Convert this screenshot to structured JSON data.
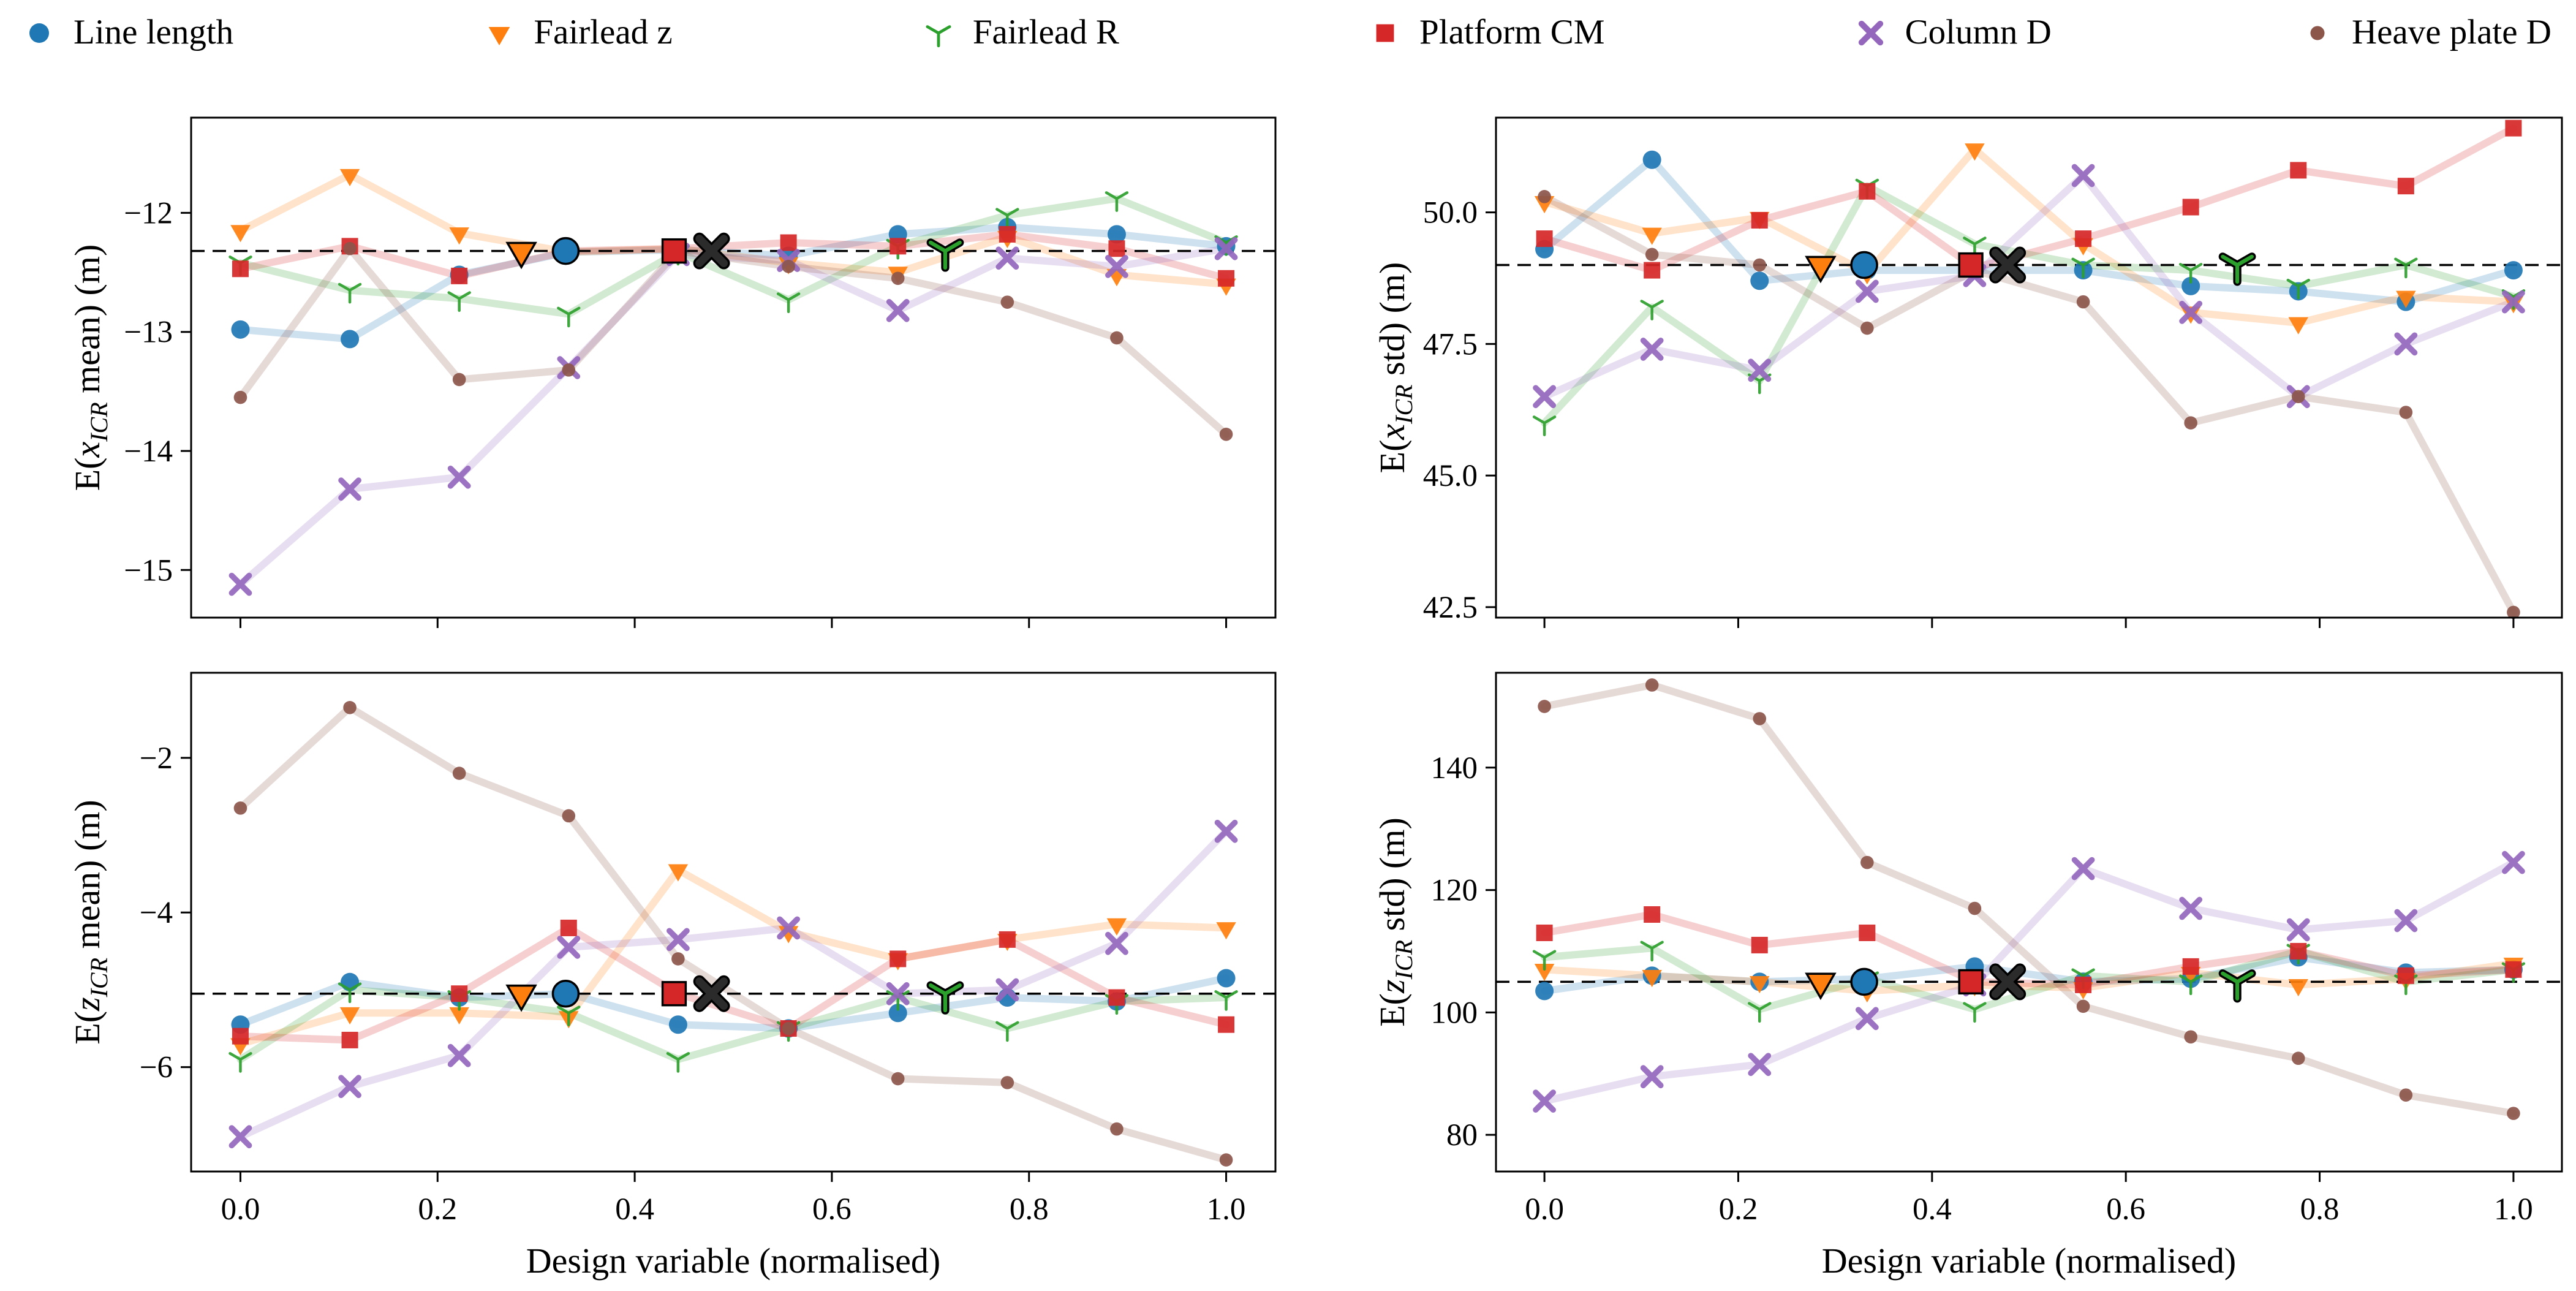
{
  "figure_title": "",
  "chart_data": {
    "type": "scatter",
    "layout": "2x2-grid",
    "grid": false,
    "legend_position": "top",
    "xlabel": "Design variable (normalised)",
    "xlim": [
      -0.05,
      1.05
    ],
    "x": [
      0.0,
      0.111,
      0.222,
      0.333,
      0.444,
      0.556,
      0.667,
      0.778,
      0.889,
      1.0
    ],
    "xticks": [
      {
        "v": 0.0,
        "label": "0.0"
      },
      {
        "v": 0.2,
        "label": "0.2"
      },
      {
        "v": 0.4,
        "label": "0.4"
      },
      {
        "v": 0.6,
        "label": "0.6"
      },
      {
        "v": 0.8,
        "label": "0.8"
      },
      {
        "v": 1.0,
        "label": "1.0"
      }
    ],
    "legend": [
      {
        "label": "Line length",
        "marker": "circle",
        "color": "#1f77b4"
      },
      {
        "label": "Fairlead z",
        "marker": "triangle-down",
        "color": "#ff7f0e"
      },
      {
        "label": "Fairlead R",
        "marker": "tri",
        "color": "#2ca02c"
      },
      {
        "label": "Platform CM",
        "marker": "square",
        "color": "#d62728"
      },
      {
        "label": "Column D",
        "marker": "x",
        "color": "#9467bd"
      },
      {
        "label": "Heave plate D",
        "marker": "dot",
        "color": "#8c564b"
      }
    ],
    "baseline_markers": [
      {
        "marker": "triangle-down",
        "color": "#ff7f0e",
        "x": 0.285
      },
      {
        "marker": "circle",
        "color": "#1f77b4",
        "x": 0.33
      },
      {
        "marker": "square",
        "color": "#d62728",
        "x": 0.44
      },
      {
        "marker": "x",
        "color": "#2b2b2b",
        "x": 0.478
      },
      {
        "marker": "tri",
        "color": "#2ca02c",
        "x": 0.715
      }
    ],
    "subplots": [
      {
        "name": "x-icr-mean",
        "ylabel": "E(x_ICR mean) (m)",
        "ylabel_parts": {
          "pre": "E(",
          "var": "x",
          "sub": "ICR",
          "post": " mean) (m)"
        },
        "ylim": [
          -15.4,
          -11.2
        ],
        "yticks": [
          {
            "v": -12,
            "label": "−12"
          },
          {
            "v": -13,
            "label": "−13"
          },
          {
            "v": -14,
            "label": "−14"
          },
          {
            "v": -15,
            "label": "−15"
          }
        ],
        "baseline": -12.32,
        "show_xtick_labels": false,
        "series": [
          {
            "name": "Line length",
            "marker": "circle",
            "color": "#1f77b4",
            "values": [
              -12.98,
              -13.06,
              -12.52,
              -12.33,
              -12.31,
              -12.36,
              -12.18,
              -12.12,
              -12.18,
              -12.28
            ]
          },
          {
            "name": "Fairlead z",
            "marker": "triangle-down",
            "color": "#ff7f0e",
            "values": [
              -12.15,
              -11.68,
              -12.17,
              -12.33,
              -12.3,
              -12.42,
              -12.5,
              -12.2,
              -12.52,
              -12.6
            ]
          },
          {
            "name": "Fairlead R",
            "marker": "tri",
            "color": "#2ca02c",
            "values": [
              -12.42,
              -12.65,
              -12.72,
              -12.85,
              -12.33,
              -12.73,
              -12.28,
              -12.02,
              -11.88,
              -12.25
            ]
          },
          {
            "name": "Platform CM",
            "marker": "square",
            "color": "#d62728",
            "values": [
              -12.47,
              -12.28,
              -12.53,
              -12.32,
              -12.3,
              -12.25,
              -12.28,
              -12.18,
              -12.3,
              -12.55
            ]
          },
          {
            "name": "Column D",
            "marker": "x",
            "color": "#9467bd",
            "values": [
              -15.12,
              -14.32,
              -14.22,
              -13.3,
              -12.35,
              -12.4,
              -12.82,
              -12.38,
              -12.45,
              -12.3
            ]
          },
          {
            "name": "Heave plate D",
            "marker": "dot",
            "color": "#8c564b",
            "values": [
              -13.55,
              -12.3,
              -13.4,
              -13.32,
              -12.32,
              -12.45,
              -12.55,
              -12.75,
              -13.05,
              -13.86
            ]
          }
        ]
      },
      {
        "name": "x-icr-std",
        "ylabel": "E(x_ICR std) (m)",
        "ylabel_parts": {
          "pre": "E(",
          "var": "x",
          "sub": "ICR",
          "post": " std) (m)"
        },
        "ylim": [
          42.3,
          51.8
        ],
        "yticks": [
          {
            "v": 50.0,
            "label": "50.0"
          },
          {
            "v": 47.5,
            "label": "47.5"
          },
          {
            "v": 45.0,
            "label": "45.0"
          },
          {
            "v": 42.5,
            "label": "42.5"
          }
        ],
        "baseline": 49.0,
        "show_xtick_labels": false,
        "series": [
          {
            "name": "Line length",
            "marker": "circle",
            "color": "#1f77b4",
            "values": [
              49.3,
              51.0,
              48.7,
              48.9,
              48.9,
              48.9,
              48.6,
              48.5,
              48.3,
              48.9
            ]
          },
          {
            "name": "Fairlead z",
            "marker": "triangle-down",
            "color": "#ff7f0e",
            "values": [
              50.2,
              49.6,
              49.9,
              48.85,
              51.2,
              49.4,
              48.1,
              47.9,
              48.4,
              48.3
            ]
          },
          {
            "name": "Fairlead R",
            "marker": "tri",
            "color": "#2ca02c",
            "values": [
              46.0,
              48.2,
              46.8,
              50.5,
              49.4,
              49.0,
              48.9,
              48.6,
              49.0,
              48.4
            ]
          },
          {
            "name": "Platform CM",
            "marker": "square",
            "color": "#d62728",
            "values": [
              49.5,
              48.9,
              49.85,
              50.4,
              48.95,
              49.5,
              50.1,
              50.8,
              50.5,
              51.6
            ]
          },
          {
            "name": "Column D",
            "marker": "x",
            "color": "#9467bd",
            "values": [
              46.5,
              47.4,
              47.0,
              48.5,
              48.8,
              50.7,
              48.1,
              46.5,
              47.5,
              48.3
            ]
          },
          {
            "name": "Heave plate D",
            "marker": "dot",
            "color": "#8c564b",
            "values": [
              50.3,
              49.2,
              49.0,
              47.8,
              48.9,
              48.3,
              46.0,
              46.5,
              46.2,
              42.4
            ]
          }
        ]
      },
      {
        "name": "z-icr-mean",
        "ylabel": "E(z_ICR mean) (m)",
        "ylabel_parts": {
          "pre": "E(",
          "var": "z",
          "sub": "ICR",
          "post": " mean) (m)"
        },
        "ylim": [
          -7.35,
          -0.9
        ],
        "yticks": [
          {
            "v": -2,
            "label": "−2"
          },
          {
            "v": -4,
            "label": "−4"
          },
          {
            "v": -6,
            "label": "−6"
          }
        ],
        "baseline": -5.05,
        "show_xtick_labels": true,
        "series": [
          {
            "name": "Line length",
            "marker": "circle",
            "color": "#1f77b4",
            "values": [
              -5.45,
              -4.9,
              -5.1,
              -5.05,
              -5.45,
              -5.5,
              -5.3,
              -5.1,
              -5.15,
              -4.85
            ]
          },
          {
            "name": "Fairlead z",
            "marker": "triangle-down",
            "color": "#ff7f0e",
            "values": [
              -5.7,
              -5.3,
              -5.3,
              -5.35,
              -3.45,
              -4.25,
              -4.6,
              -4.35,
              -4.15,
              -4.2
            ]
          },
          {
            "name": "Fairlead R",
            "marker": "tri",
            "color": "#2ca02c",
            "values": [
              -5.9,
              -5.0,
              -5.1,
              -5.3,
              -5.9,
              -5.5,
              -5.1,
              -5.5,
              -5.15,
              -5.1
            ]
          },
          {
            "name": "Platform CM",
            "marker": "square",
            "color": "#d62728",
            "values": [
              -5.6,
              -5.65,
              -5.05,
              -4.2,
              -5.05,
              -5.5,
              -4.6,
              -4.35,
              -5.1,
              -5.45
            ]
          },
          {
            "name": "Column D",
            "marker": "x",
            "color": "#9467bd",
            "values": [
              -6.9,
              -6.25,
              -5.85,
              -4.45,
              -4.35,
              -4.2,
              -5.05,
              -5.0,
              -4.4,
              -2.95
            ]
          },
          {
            "name": "Heave plate D",
            "marker": "dot",
            "color": "#8c564b",
            "values": [
              -2.65,
              -1.35,
              -2.2,
              -2.75,
              -4.6,
              -5.5,
              -6.15,
              -6.2,
              -6.8,
              -7.2
            ]
          }
        ]
      },
      {
        "name": "z-icr-std",
        "ylabel": "E(z_ICR std) (m)",
        "ylabel_parts": {
          "pre": "E(",
          "var": "z",
          "sub": "ICR",
          "post": " std) (m)"
        },
        "ylim": [
          74.0,
          155.5
        ],
        "yticks": [
          {
            "v": 140,
            "label": "140"
          },
          {
            "v": 120,
            "label": "120"
          },
          {
            "v": 100,
            "label": "100"
          },
          {
            "v": 80,
            "label": "80"
          }
        ],
        "baseline": 105.0,
        "show_xtick_labels": true,
        "series": [
          {
            "name": "Line length",
            "marker": "circle",
            "color": "#1f77b4",
            "values": [
              103.5,
              106,
              105,
              105.5,
              107.5,
              105,
              105.5,
              109,
              106.5,
              107
            ]
          },
          {
            "name": "Fairlead z",
            "marker": "triangle-down",
            "color": "#ff7f0e",
            "values": [
              107,
              106,
              105,
              103.5,
              104.5,
              104,
              106.5,
              104.5,
              105.5,
              108
            ]
          },
          {
            "name": "Fairlead R",
            "marker": "tri",
            "color": "#2ca02c",
            "values": [
              109,
              110.5,
              100.5,
              105.5,
              100.5,
              106,
              105,
              110,
              105,
              107
            ]
          },
          {
            "name": "Platform CM",
            "marker": "square",
            "color": "#d62728",
            "values": [
              113,
              116,
              111,
              113,
              105,
              104.5,
              107.5,
              110,
              106,
              107
            ]
          },
          {
            "name": "Column D",
            "marker": "x",
            "color": "#9467bd",
            "values": [
              85.5,
              89.5,
              91.5,
              99,
              104.5,
              123.5,
              117,
              113.5,
              115,
              124.5
            ]
          },
          {
            "name": "Heave plate D",
            "marker": "dot",
            "color": "#8c564b",
            "values": [
              150,
              153.5,
              148,
              124.5,
              117,
              101,
              96,
              92.5,
              86.5,
              83.5
            ]
          }
        ]
      }
    ]
  }
}
